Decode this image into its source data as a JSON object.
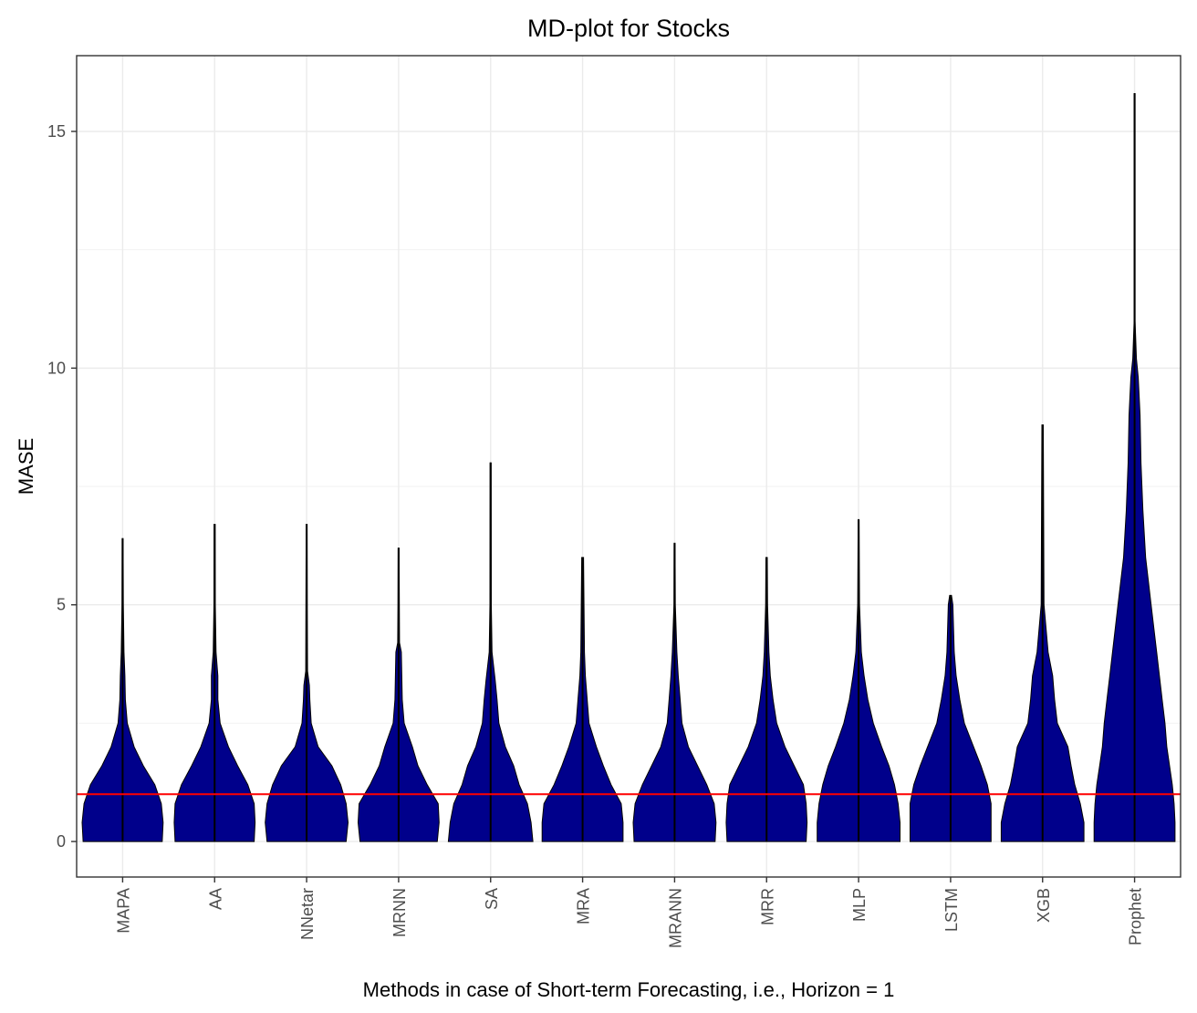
{
  "chart_data": {
    "type": "violin",
    "title": "MD-plot for Stocks",
    "xlabel": "Methods in case of Short-term Forecasting, i.e., Horizon = 1",
    "ylabel": "MASE",
    "ylim": [
      -0.75,
      16.6
    ],
    "yticks": [
      0,
      5,
      10,
      15
    ],
    "grid": true,
    "reference_line": {
      "value": 1,
      "color": "#ff0000"
    },
    "fill_color": "#00008B",
    "categories": [
      "MAPA",
      "AA",
      "NNetar",
      "MRNN",
      "SA",
      "MRA",
      "MRANN",
      "MRR",
      "MLP",
      "LSTM",
      "XGB",
      "Prophet"
    ],
    "series": [
      {
        "name": "MAPA",
        "profile": [
          [
            0,
            0.86
          ],
          [
            0.4,
            0.88
          ],
          [
            0.8,
            0.84
          ],
          [
            1.2,
            0.7
          ],
          [
            1.6,
            0.45
          ],
          [
            2.0,
            0.25
          ],
          [
            2.5,
            0.1
          ],
          [
            3.0,
            0.06
          ],
          [
            3.5,
            0.05
          ],
          [
            4.0,
            0.03
          ],
          [
            5.0,
            0.015
          ],
          [
            6.4,
            0.01
          ]
        ]
      },
      {
        "name": "AA",
        "profile": [
          [
            0,
            0.86
          ],
          [
            0.4,
            0.88
          ],
          [
            0.8,
            0.86
          ],
          [
            1.2,
            0.72
          ],
          [
            1.6,
            0.5
          ],
          [
            2.0,
            0.3
          ],
          [
            2.5,
            0.12
          ],
          [
            3.0,
            0.07
          ],
          [
            3.5,
            0.07
          ],
          [
            4.0,
            0.03
          ],
          [
            5.0,
            0.015
          ],
          [
            6.7,
            0.01
          ]
        ]
      },
      {
        "name": "NNetar",
        "profile": [
          [
            0,
            0.86
          ],
          [
            0.4,
            0.9
          ],
          [
            0.8,
            0.86
          ],
          [
            1.2,
            0.74
          ],
          [
            1.6,
            0.55
          ],
          [
            2.0,
            0.25
          ],
          [
            2.5,
            0.1
          ],
          [
            3.0,
            0.07
          ],
          [
            3.3,
            0.06
          ],
          [
            3.6,
            0.02
          ],
          [
            5.0,
            0.015
          ],
          [
            6.7,
            0.01
          ]
        ]
      },
      {
        "name": "MRNN",
        "profile": [
          [
            0,
            0.84
          ],
          [
            0.4,
            0.88
          ],
          [
            0.8,
            0.86
          ],
          [
            1.2,
            0.62
          ],
          [
            1.6,
            0.42
          ],
          [
            2.0,
            0.3
          ],
          [
            2.5,
            0.12
          ],
          [
            3.0,
            0.08
          ],
          [
            4.0,
            0.06
          ],
          [
            4.2,
            0.02
          ],
          [
            5.0,
            0.015
          ],
          [
            6.2,
            0.01
          ]
        ]
      },
      {
        "name": "SA",
        "profile": [
          [
            0,
            0.92
          ],
          [
            0.4,
            0.88
          ],
          [
            0.8,
            0.8
          ],
          [
            1.2,
            0.62
          ],
          [
            1.6,
            0.5
          ],
          [
            2.0,
            0.32
          ],
          [
            2.5,
            0.18
          ],
          [
            3.0,
            0.14
          ],
          [
            3.4,
            0.1
          ],
          [
            4.0,
            0.03
          ],
          [
            5.0,
            0.015
          ],
          [
            8.0,
            0.01
          ]
        ]
      },
      {
        "name": "MRA",
        "profile": [
          [
            0,
            0.88
          ],
          [
            0.4,
            0.88
          ],
          [
            0.8,
            0.84
          ],
          [
            1.2,
            0.62
          ],
          [
            1.6,
            0.45
          ],
          [
            2.0,
            0.3
          ],
          [
            2.5,
            0.14
          ],
          [
            3.0,
            0.1
          ],
          [
            3.5,
            0.06
          ],
          [
            4.0,
            0.04
          ],
          [
            5.0,
            0.03
          ],
          [
            6.0,
            0.02
          ]
        ]
      },
      {
        "name": "MRANN",
        "profile": [
          [
            0,
            0.88
          ],
          [
            0.4,
            0.9
          ],
          [
            0.8,
            0.86
          ],
          [
            1.2,
            0.7
          ],
          [
            1.6,
            0.5
          ],
          [
            2.0,
            0.3
          ],
          [
            2.5,
            0.16
          ],
          [
            3.0,
            0.12
          ],
          [
            3.5,
            0.08
          ],
          [
            4.0,
            0.05
          ],
          [
            5.0,
            0.015
          ],
          [
            6.3,
            0.01
          ]
        ]
      },
      {
        "name": "MRR",
        "profile": [
          [
            0,
            0.86
          ],
          [
            0.4,
            0.88
          ],
          [
            0.8,
            0.86
          ],
          [
            1.2,
            0.8
          ],
          [
            1.6,
            0.6
          ],
          [
            2.0,
            0.4
          ],
          [
            2.5,
            0.22
          ],
          [
            3.0,
            0.14
          ],
          [
            3.5,
            0.08
          ],
          [
            4.0,
            0.05
          ],
          [
            5.0,
            0.02
          ],
          [
            6.0,
            0.015
          ]
        ]
      },
      {
        "name": "MLP",
        "profile": [
          [
            0,
            0.9
          ],
          [
            0.4,
            0.9
          ],
          [
            0.8,
            0.86
          ],
          [
            1.2,
            0.78
          ],
          [
            1.6,
            0.66
          ],
          [
            2.0,
            0.5
          ],
          [
            2.5,
            0.32
          ],
          [
            3.0,
            0.2
          ],
          [
            3.5,
            0.12
          ],
          [
            4.0,
            0.06
          ],
          [
            5.0,
            0.02
          ],
          [
            6.8,
            0.01
          ]
        ]
      },
      {
        "name": "LSTM",
        "profile": [
          [
            0,
            0.88
          ],
          [
            0.4,
            0.88
          ],
          [
            0.8,
            0.88
          ],
          [
            1.2,
            0.8
          ],
          [
            1.6,
            0.66
          ],
          [
            2.0,
            0.5
          ],
          [
            2.5,
            0.3
          ],
          [
            3.0,
            0.2
          ],
          [
            3.5,
            0.12
          ],
          [
            4.0,
            0.08
          ],
          [
            5.0,
            0.05
          ],
          [
            5.2,
            0.02
          ]
        ]
      },
      {
        "name": "XGB",
        "profile": [
          [
            0,
            0.9
          ],
          [
            0.4,
            0.9
          ],
          [
            0.8,
            0.82
          ],
          [
            1.2,
            0.7
          ],
          [
            1.6,
            0.62
          ],
          [
            2.0,
            0.55
          ],
          [
            2.5,
            0.32
          ],
          [
            3.0,
            0.26
          ],
          [
            3.5,
            0.22
          ],
          [
            4.0,
            0.12
          ],
          [
            5.0,
            0.03
          ],
          [
            8.8,
            0.015
          ]
        ]
      },
      {
        "name": "Prophet",
        "profile": [
          [
            0,
            0.88
          ],
          [
            0.4,
            0.88
          ],
          [
            0.8,
            0.86
          ],
          [
            1.2,
            0.82
          ],
          [
            1.6,
            0.76
          ],
          [
            2.0,
            0.7
          ],
          [
            2.5,
            0.66
          ],
          [
            3.0,
            0.6
          ],
          [
            3.5,
            0.54
          ],
          [
            4.0,
            0.48
          ],
          [
            5.0,
            0.36
          ],
          [
            6.0,
            0.24
          ],
          [
            7.0,
            0.18
          ],
          [
            8.0,
            0.14
          ],
          [
            9.0,
            0.12
          ],
          [
            9.8,
            0.08
          ],
          [
            10.2,
            0.04
          ],
          [
            11.0,
            0.01
          ],
          [
            15.8,
            0.01
          ]
        ]
      }
    ]
  }
}
